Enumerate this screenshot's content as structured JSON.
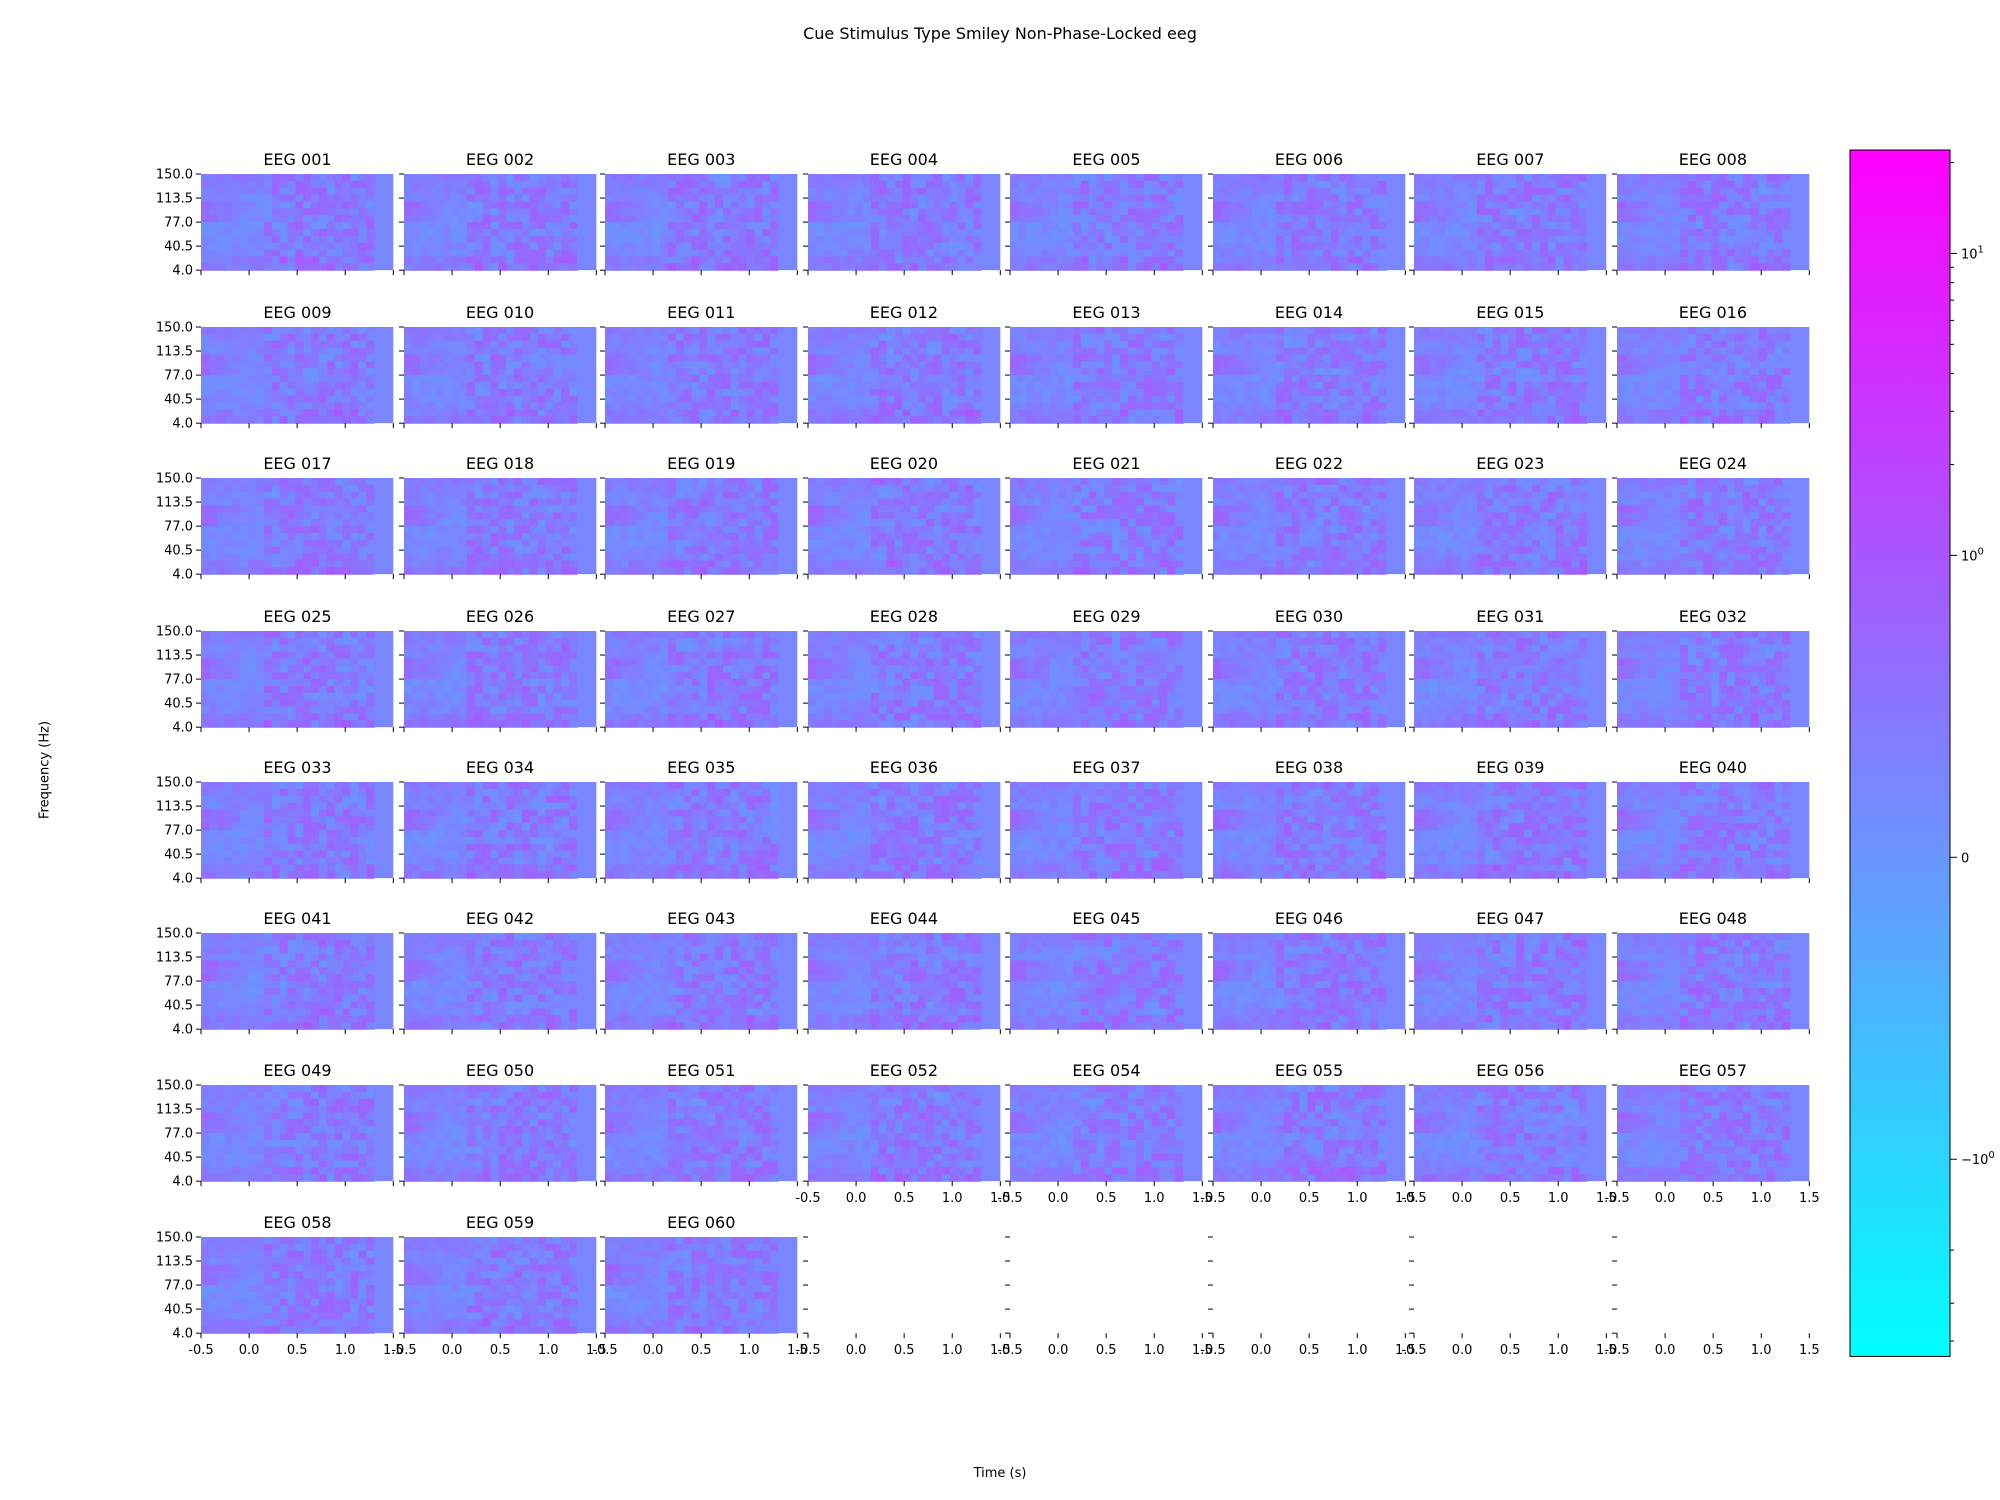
{
  "figure": {
    "title": "Cue Stimulus Type Smiley Non-Phase-Locked eeg",
    "ylabel": "Frequency (Hz)",
    "xlabel": "Time (s)"
  },
  "chart_data": {
    "type": "heatmap",
    "title": "Cue Stimulus Type Smiley Non-Phase-Locked eeg",
    "xlabel": "Time (s)",
    "ylabel": "Frequency (Hz)",
    "xlim": [
      -0.5,
      1.5
    ],
    "ylim": [
      4.0,
      150.0
    ],
    "x_ticks": [
      "-0.5",
      "0.0",
      "0.5",
      "1.0",
      "1.5"
    ],
    "y_ticks": [
      "4.0",
      "40.5",
      "77.0",
      "113.5",
      "150.0"
    ],
    "grid": {
      "rows": 8,
      "cols": 8
    },
    "panels": [
      "EEG 001",
      "EEG 002",
      "EEG 003",
      "EEG 004",
      "EEG 005",
      "EEG 006",
      "EEG 007",
      "EEG 008",
      "EEG 009",
      "EEG 010",
      "EEG 011",
      "EEG 012",
      "EEG 013",
      "EEG 014",
      "EEG 015",
      "EEG 016",
      "EEG 017",
      "EEG 018",
      "EEG 019",
      "EEG 020",
      "EEG 021",
      "EEG 022",
      "EEG 023",
      "EEG 024",
      "EEG 025",
      "EEG 026",
      "EEG 027",
      "EEG 028",
      "EEG 029",
      "EEG 030",
      "EEG 031",
      "EEG 032",
      "EEG 033",
      "EEG 034",
      "EEG 035",
      "EEG 036",
      "EEG 037",
      "EEG 038",
      "EEG 039",
      "EEG 040",
      "EEG 041",
      "EEG 042",
      "EEG 043",
      "EEG 044",
      "EEG 045",
      "EEG 046",
      "EEG 047",
      "EEG 048",
      "EEG 049",
      "EEG 050",
      "EEG 051",
      "EEG 052",
      "EEG 054",
      "EEG 055",
      "EEG 056",
      "EEG 057",
      "EEG 058",
      "EEG 059",
      "EEG 060"
    ],
    "colorbar": {
      "scale": "symlog",
      "colormap": "cool",
      "colors": {
        "low": "#00ffff",
        "high": "#ff00ff",
        "background": "#7a86ff"
      },
      "range": [
        -4.5,
        22
      ],
      "major_ticks": [
        {
          "value": 10,
          "label": "10¹",
          "base": "10",
          "exp": "1"
        },
        {
          "value": 1,
          "label": "10⁰",
          "base": "10",
          "exp": "0"
        },
        {
          "value": 0,
          "label": "0",
          "base": "0",
          "exp": ""
        },
        {
          "value": -1,
          "label": "−10⁰",
          "base": "−10",
          "exp": "0"
        }
      ]
    }
  }
}
